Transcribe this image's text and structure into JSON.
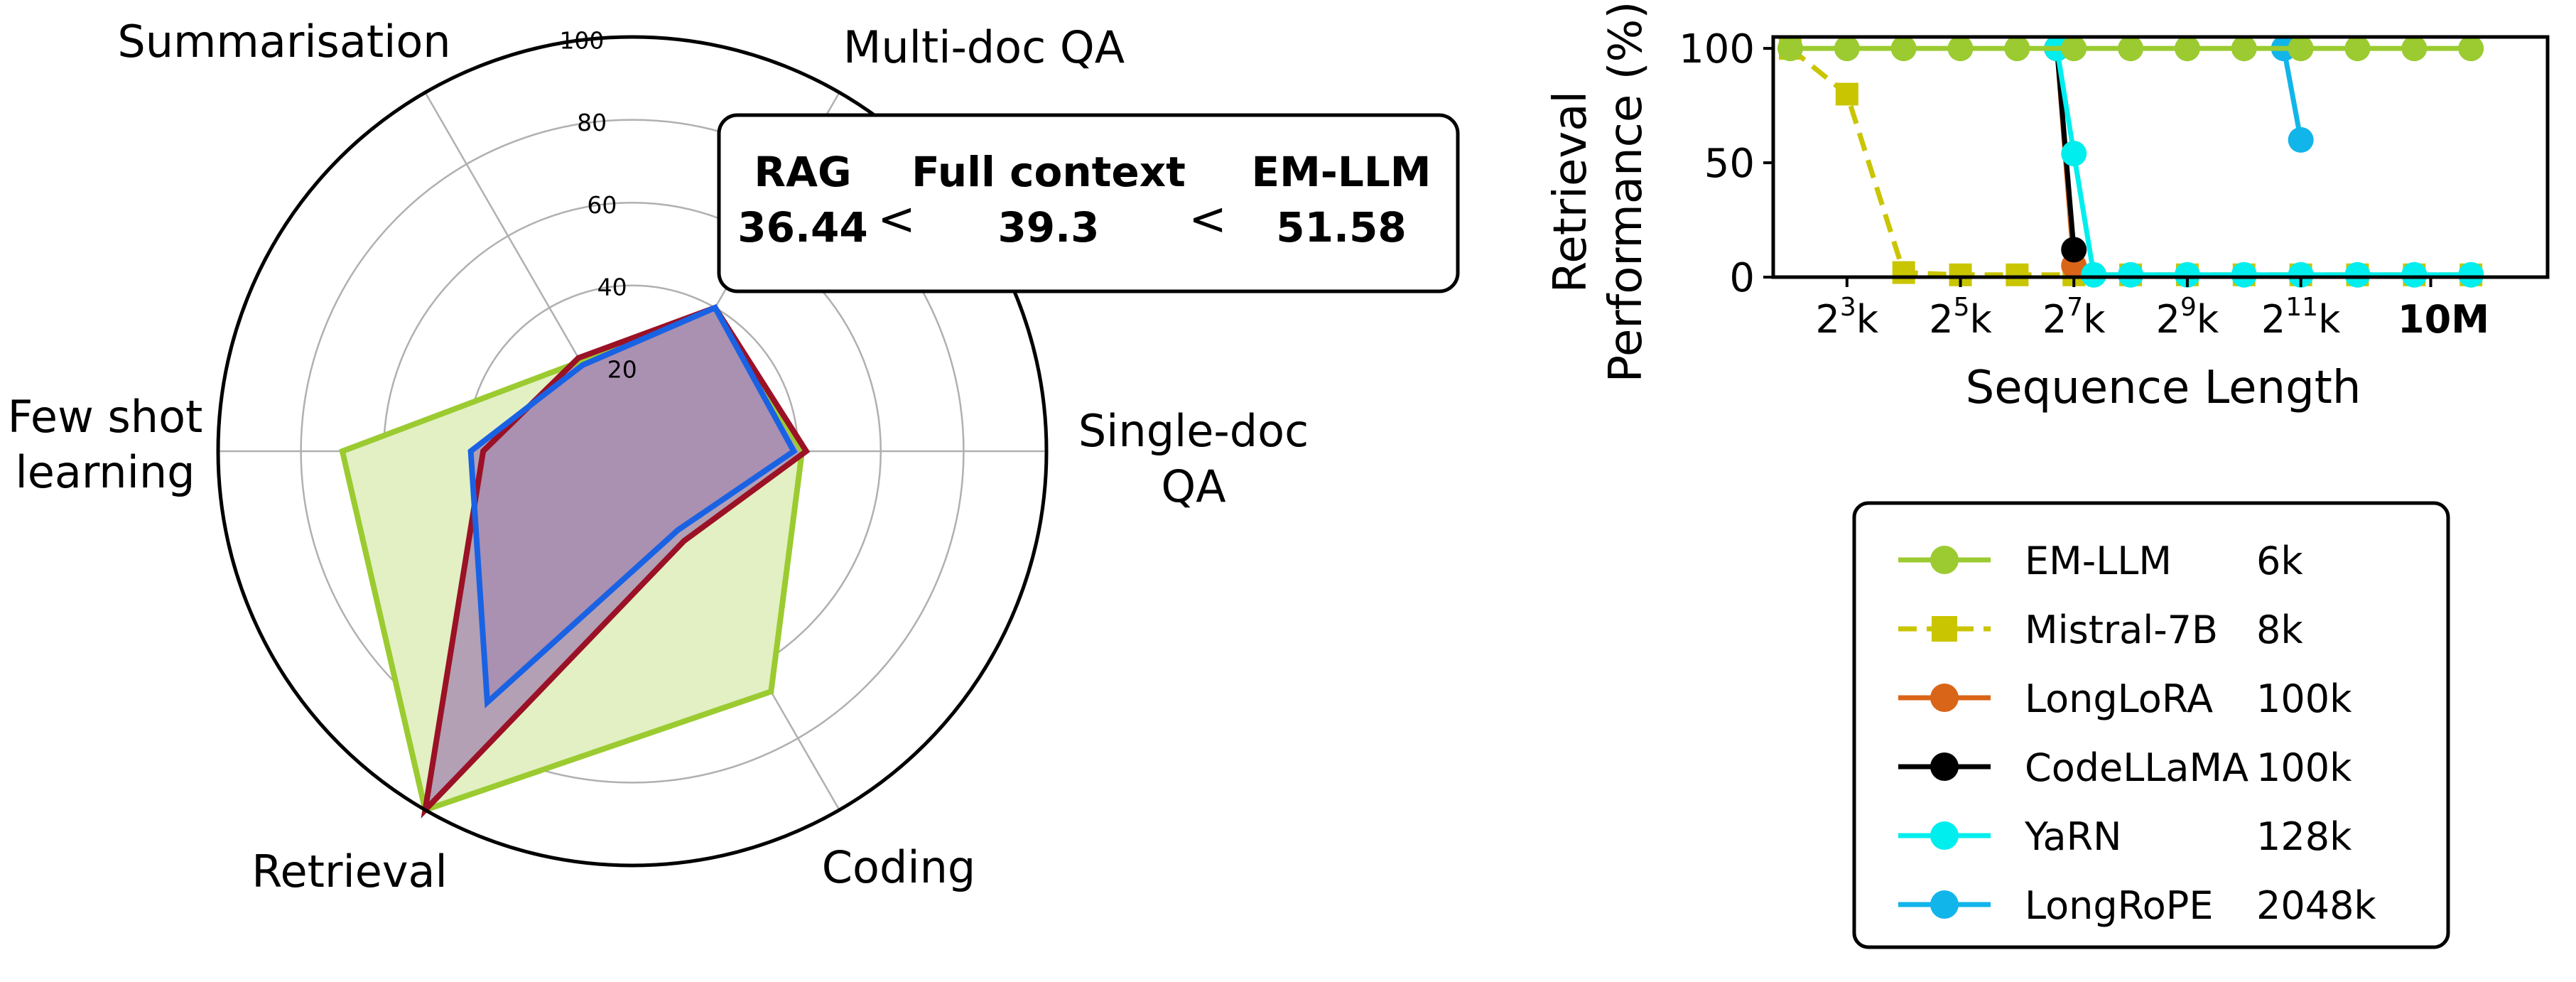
{
  "chart_data": [
    {
      "type": "radar",
      "axes": [
        "Summarisation",
        "Multi-doc QA",
        "Single-doc\nQA",
        "Coding",
        "Retrieval",
        "Few shot\nlearning"
      ],
      "radial_ticks": [
        "20",
        "40",
        "60",
        "80",
        "100"
      ],
      "rmax": 100,
      "series": [
        {
          "key": "em",
          "color": "#9bcb30",
          "fill": "#e2f0c3",
          "values": [
            25,
            40,
            41,
            67,
            100,
            70
          ]
        },
        {
          "key": "full",
          "color": "#9b1126",
          "fill": "#a88cb0",
          "values": [
            26,
            40,
            42,
            25,
            100,
            36
          ]
        },
        {
          "key": "rag",
          "color": "#1a62e4",
          "fill": "#a88cb0",
          "values": [
            24,
            40,
            39,
            22,
            70,
            39
          ]
        }
      ],
      "summary_box": {
        "rag_label": "RAG",
        "rag_value": "36.44",
        "lt1": "<",
        "full_label": "Full context",
        "full_value": "39.3",
        "lt2": "<",
        "em_label": "EM-LLM",
        "em_value": "51.58",
        "rag_color": "#1a62e4",
        "full_color": "#9b1126",
        "em_color": "#6f9a1c"
      }
    },
    {
      "type": "line",
      "xlabel": "Sequence Length",
      "ylabel_line1": "Retrieval",
      "ylabel_line2": "Performance (%)",
      "x_scale": "log2",
      "xlim_log2": [
        1.7,
        15.35
      ],
      "ylim": [
        0,
        105
      ],
      "yticks": [
        "0",
        "50",
        "100"
      ],
      "ytick_values": [
        0,
        50,
        100
      ],
      "xticks": [
        {
          "base": "2",
          "exp": "3",
          "suffix": "k",
          "log2": 3
        },
        {
          "base": "2",
          "exp": "5",
          "suffix": "k",
          "log2": 5
        },
        {
          "base": "2",
          "exp": "7",
          "suffix": "k",
          "log2": 7
        },
        {
          "base": "2",
          "exp": "9",
          "suffix": "k",
          "log2": 9
        },
        {
          "base": "2",
          "exp": "11",
          "suffix": "k",
          "log2": 11
        },
        {
          "label": "10M",
          "bold": true,
          "log2": 13.29
        }
      ],
      "series": [
        {
          "name": "Mistral-7B",
          "color": "#c9c500",
          "marker": "square",
          "dashed": true,
          "x": [
            2,
            3,
            4,
            5,
            6,
            7,
            8,
            9,
            10,
            11,
            12,
            13,
            14
          ],
          "y": [
            100,
            80,
            2,
            1,
            1,
            1,
            1,
            1,
            1,
            1,
            1,
            1,
            1
          ]
        },
        {
          "name": "LongLoRA",
          "color": "#d96518",
          "marker": "circle",
          "dashed": false,
          "x": [
            6.7,
            7.0
          ],
          "y": [
            100,
            5
          ]
        },
        {
          "name": "CodeLLaMA",
          "color": "#000000",
          "marker": "circle",
          "dashed": false,
          "x": [
            6.7,
            7.0
          ],
          "y": [
            100,
            12
          ]
        },
        {
          "name": "YaRN",
          "color": "#00eeee",
          "marker": "circle",
          "dashed": false,
          "x": [
            6.7,
            7.0,
            7.35,
            8,
            9,
            10,
            11,
            12,
            13,
            14
          ],
          "y": [
            100,
            54,
            1,
            1,
            1,
            1,
            1,
            1,
            1,
            1
          ]
        },
        {
          "name": "LongRoPE",
          "color": "#11b5ea",
          "marker": "circle",
          "dashed": false,
          "x": [
            10.7,
            11.0
          ],
          "y": [
            100,
            60
          ]
        },
        {
          "name": "EM-LLM",
          "color": "#9bcb30",
          "marker": "circle",
          "dashed": false,
          "x": [
            2,
            3,
            4,
            5,
            6,
            7,
            8,
            9,
            10,
            11,
            12,
            13,
            14
          ],
          "y": [
            100,
            100,
            100,
            100,
            100,
            100,
            100,
            100,
            100,
            100,
            100,
            100,
            100
          ]
        }
      ],
      "legend": [
        {
          "name": "EM-LLM",
          "context": "6k",
          "color": "#9bcb30",
          "marker": "circle",
          "dashed": false
        },
        {
          "name": "Mistral-7B",
          "context": "8k",
          "color": "#c9c500",
          "marker": "square",
          "dashed": true
        },
        {
          "name": "LongLoRA",
          "context": "100k",
          "color": "#d96518",
          "marker": "circle",
          "dashed": false
        },
        {
          "name": "CodeLLaMA",
          "context": "100k",
          "color": "#000000",
          "marker": "circle",
          "dashed": false
        },
        {
          "name": "YaRN",
          "context": "128k",
          "color": "#00eeee",
          "marker": "circle",
          "dashed": false
        },
        {
          "name": "LongRoPE",
          "context": "2048k",
          "color": "#11b5ea",
          "marker": "circle",
          "dashed": false
        }
      ]
    }
  ]
}
